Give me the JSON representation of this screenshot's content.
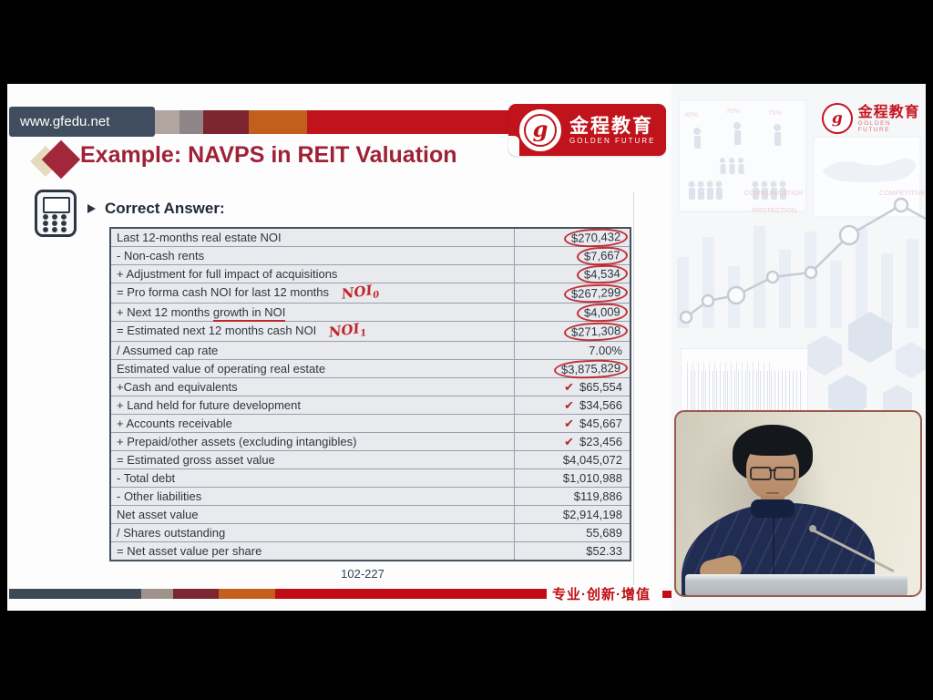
{
  "header": {
    "url": "www.gfedu.net",
    "brand": {
      "cn": "金程教育",
      "en": "GOLDEN FUTURE"
    }
  },
  "slide": {
    "title": "Example: NAVPS in REIT Valuation",
    "bullet": "Correct Answer:",
    "table": {
      "rows": [
        {
          "label": "Last 12-months real estate NOI",
          "value": "$270,432",
          "circled": true
        },
        {
          "label": "- Non-cash rents",
          "value": "$7,667",
          "circled": true
        },
        {
          "label": "+ Adjustment for full impact of acquisitions",
          "value": "$4,534",
          "circled": true
        },
        {
          "label": "= Pro forma cash NOI for last 12 months",
          "value": "$267,299",
          "circled": true,
          "annotation": "NOI",
          "annotation_sub": "0"
        },
        {
          "label": "+ Next 12 months growth in NOI",
          "value": "$4,009",
          "circled": true,
          "underline": "growth in NOI"
        },
        {
          "label": "= Estimated next 12 months cash NOI",
          "value": "$271,308",
          "circled": true,
          "annotation": "NOI",
          "annotation_sub": "1"
        },
        {
          "label": "/ Assumed cap rate",
          "value": "7.00%"
        },
        {
          "label": "Estimated value of operating real estate",
          "value": "$3,875,829",
          "circled": true
        },
        {
          "label": "+Cash and equivalents",
          "value": "$65,554",
          "check": true
        },
        {
          "label": "+ Land held for future development",
          "value": "$34,566",
          "check": true
        },
        {
          "label": "+ Accounts receivable",
          "value": "$45,667",
          "check": true
        },
        {
          "label": "+ Prepaid/other assets (excluding intangibles)",
          "value": "$23,456",
          "check": true
        },
        {
          "label": "= Estimated gross asset value",
          "value": "$4,045,072"
        },
        {
          "label": "- Total debt",
          "value": "$1,010,988"
        },
        {
          "label": "- Other liabilities",
          "value": "$119,886"
        },
        {
          "label": "Net asset value",
          "value": "$2,914,198"
        },
        {
          "label": "/ Shares outstanding",
          "value": "55,689"
        },
        {
          "label": "= Net asset value per share",
          "value": "$52.33"
        }
      ]
    },
    "page": "102-227",
    "slogan": "专业·创新·增值"
  },
  "sidebar": {
    "brand": {
      "cn": "金程教育",
      "en": "GOLDEN FUTURE"
    },
    "percents": [
      "40%",
      "70%",
      "75%"
    ],
    "watermarks": [
      "COMMUNICATION",
      "PROTECTION",
      "COMPETITIVE"
    ]
  },
  "colors": {
    "accent_red": "#c1131b",
    "title_red": "#9e2236",
    "navy": "#3f4d5e",
    "annotation_red": "#c0262c",
    "table_bg": "#e8eaee"
  }
}
